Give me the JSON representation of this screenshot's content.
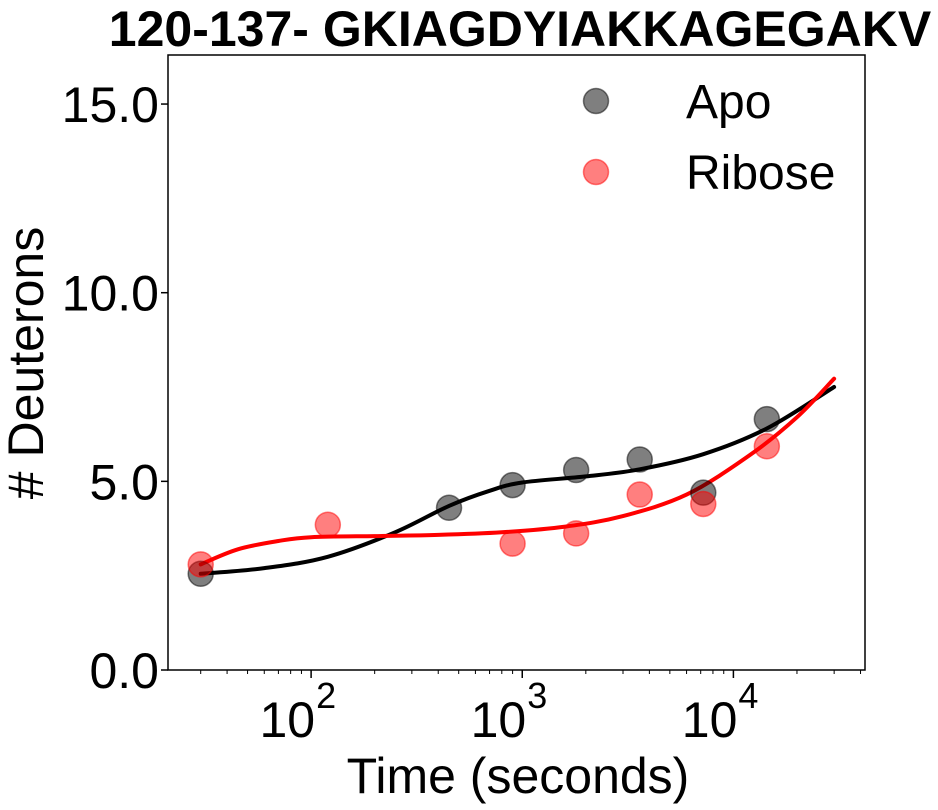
{
  "chart_data": {
    "type": "scatter",
    "title": "120-137- GKIAGDYIAKKAGEGAKV",
    "xlabel": "Time (seconds)",
    "ylabel": "# Deuterons",
    "x_scale": "log",
    "xlim": [
      21,
      42000
    ],
    "ylim": [
      0,
      16.3
    ],
    "x_ticks": [
      {
        "base": "10",
        "exp": "2",
        "value": 100
      },
      {
        "base": "10",
        "exp": "3",
        "value": 1000
      },
      {
        "base": "10",
        "exp": "4",
        "value": 10000
      }
    ],
    "y_ticks": [
      {
        "label": "0.0",
        "value": 0
      },
      {
        "label": "5.0",
        "value": 5
      },
      {
        "label": "10.0",
        "value": 10
      },
      {
        "label": "15.0",
        "value": 15
      }
    ],
    "grid": false,
    "legend_position": "top-right",
    "series": [
      {
        "name": "Apo",
        "color": "#000000",
        "marker_alpha": 0.5,
        "x": [
          30,
          450,
          900,
          1800,
          3600,
          7200,
          14400
        ],
        "y": [
          2.55,
          4.3,
          4.9,
          5.3,
          5.58,
          4.7,
          6.65
        ],
        "fit": {
          "x": [
            30,
            60,
            120,
            250,
            450,
            700,
            1000,
            2000,
            3600,
            7200,
            14400,
            30000
          ],
          "y": [
            2.55,
            2.7,
            3.0,
            3.65,
            4.35,
            4.75,
            4.97,
            5.13,
            5.32,
            5.72,
            6.4,
            7.5
          ]
        }
      },
      {
        "name": "Ribose",
        "color": "#ff0000",
        "marker_alpha": 0.5,
        "x": [
          30,
          120,
          900,
          1800,
          3600,
          7200,
          14400
        ],
        "y": [
          2.8,
          3.85,
          3.35,
          3.62,
          4.65,
          4.4,
          5.93
        ],
        "fit": {
          "x": [
            30,
            45,
            70,
            100,
            200,
            400,
            800,
            1600,
            3000,
            6000,
            12000,
            20000,
            30000
          ],
          "y": [
            2.8,
            3.2,
            3.42,
            3.52,
            3.55,
            3.58,
            3.65,
            3.8,
            4.08,
            4.65,
            5.7,
            6.7,
            7.72
          ]
        }
      }
    ]
  }
}
